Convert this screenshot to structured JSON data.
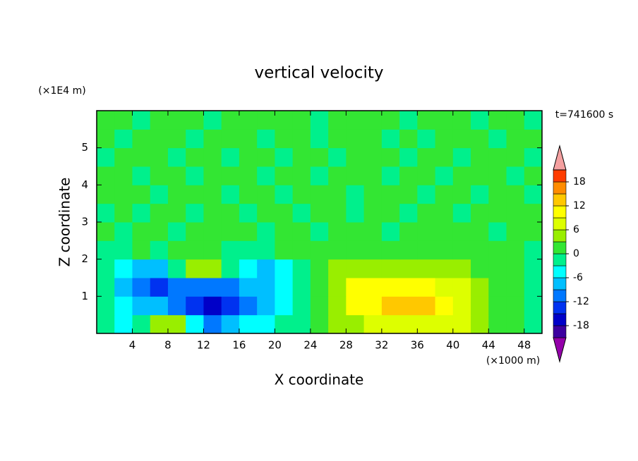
{
  "chart_data": {
    "type": "contour",
    "title": "vertical velocity",
    "x_label": "X coordinate",
    "y_label": "Z coordinate",
    "x_unit": "(×1000 m)",
    "y_unit": "(×1E4 m)",
    "annotation": "t=741600 s",
    "x": [
      1,
      3,
      5,
      7,
      9,
      11,
      13,
      15,
      17,
      19,
      21,
      23,
      25,
      27,
      29,
      31,
      33,
      35,
      37,
      39,
      41,
      43,
      45,
      47,
      49
    ],
    "z": [
      0.25,
      0.75,
      1.25,
      1.75,
      2.25,
      2.75,
      3.25,
      3.75,
      4.25,
      4.75,
      5.25,
      5.75
    ],
    "values": [
      [
        -2,
        -4,
        -3,
        4,
        3,
        -6,
        -10,
        -8,
        -6,
        -5,
        -3,
        -1,
        1,
        3,
        5,
        6,
        7,
        8,
        8,
        7,
        6,
        4,
        2,
        1,
        -1
      ],
      [
        -3,
        -5,
        -8,
        -9,
        -10,
        -14,
        -16,
        -13,
        -10,
        -7,
        -4,
        -1,
        2,
        5,
        9,
        11,
        13,
        14,
        13,
        11,
        7,
        4,
        2,
        1,
        -1
      ],
      [
        -3,
        -9,
        -12,
        -13,
        -11,
        -10,
        -11,
        -10,
        -9,
        -7,
        -4,
        -1,
        2,
        5,
        9,
        10,
        11,
        11,
        10,
        8,
        6,
        3,
        2,
        0,
        -1
      ],
      [
        -3,
        -6,
        -9,
        -7,
        -2,
        3,
        4,
        -1,
        -5,
        -7,
        -5,
        -1,
        1,
        3,
        4,
        5,
        5,
        5,
        4,
        4,
        3,
        2,
        1,
        0,
        -1
      ],
      [
        -1,
        -2,
        2,
        -1,
        0,
        2,
        1,
        -1,
        -2,
        -1,
        0,
        1,
        0,
        1,
        2,
        1,
        1,
        2,
        1,
        1,
        2,
        1,
        0,
        1,
        -1
      ],
      [
        1,
        -1,
        0,
        1,
        -1,
        0,
        1,
        0,
        1,
        -1,
        0,
        1,
        -1,
        1,
        0,
        1,
        -1,
        0,
        1,
        1,
        0,
        1,
        -1,
        0,
        1
      ],
      [
        -1,
        1,
        -1,
        0,
        1,
        -1,
        0,
        1,
        -1,
        1,
        0,
        -1,
        1,
        0,
        -1,
        1,
        1,
        -1,
        0,
        1,
        -1,
        0,
        1,
        1,
        0
      ],
      [
        1,
        0,
        1,
        -1,
        0,
        1,
        1,
        -1,
        0,
        1,
        -1,
        1,
        0,
        1,
        -1,
        0,
        1,
        0,
        -1,
        1,
        1,
        -1,
        0,
        1,
        -1
      ],
      [
        0,
        1,
        -1,
        1,
        0,
        -1,
        1,
        0,
        1,
        -1,
        1,
        0,
        -1,
        1,
        0,
        1,
        -1,
        1,
        0,
        -1,
        1,
        0,
        1,
        -1,
        1
      ],
      [
        -1,
        0,
        1,
        0,
        -1,
        1,
        0,
        -1,
        1,
        0,
        -1,
        1,
        1,
        -1,
        0,
        1,
        0,
        -1,
        1,
        0,
        -1,
        1,
        0,
        1,
        -1
      ],
      [
        0,
        -1,
        0,
        1,
        1,
        -1,
        0,
        1,
        0,
        -1,
        1,
        0,
        -1,
        1,
        1,
        0,
        -1,
        1,
        -1,
        0,
        1,
        1,
        -1,
        0,
        1
      ],
      [
        1,
        0,
        -1,
        0,
        1,
        0,
        -1,
        1,
        0,
        1,
        0,
        1,
        -1,
        0,
        1,
        1,
        0,
        -1,
        0,
        1,
        0,
        -1,
        0,
        1,
        -1
      ]
    ],
    "xlim": [
      0,
      50
    ],
    "ylim": [
      0,
      6
    ],
    "xticks": [
      4,
      8,
      12,
      16,
      20,
      24,
      28,
      32,
      36,
      40,
      44,
      48
    ],
    "yticks": [
      1,
      2,
      3,
      4,
      5
    ],
    "levels": [
      -21,
      -18,
      -15,
      -12,
      -9,
      -6,
      -3,
      0,
      3,
      6,
      9,
      12,
      15,
      18,
      21
    ],
    "colors": [
      "#9400aa",
      "#3c00a0",
      "#0000c8",
      "#0032f0",
      "#0078ff",
      "#00bfff",
      "#00ffff",
      "#00f08c",
      "#33e633",
      "#99ee00",
      "#ddff00",
      "#ffff00",
      "#ffc800",
      "#ff8c00",
      "#ff3c00",
      "#f4a0a0"
    ],
    "colorbar_ticks": [
      -18,
      -12,
      -6,
      0,
      6,
      12,
      18
    ]
  }
}
